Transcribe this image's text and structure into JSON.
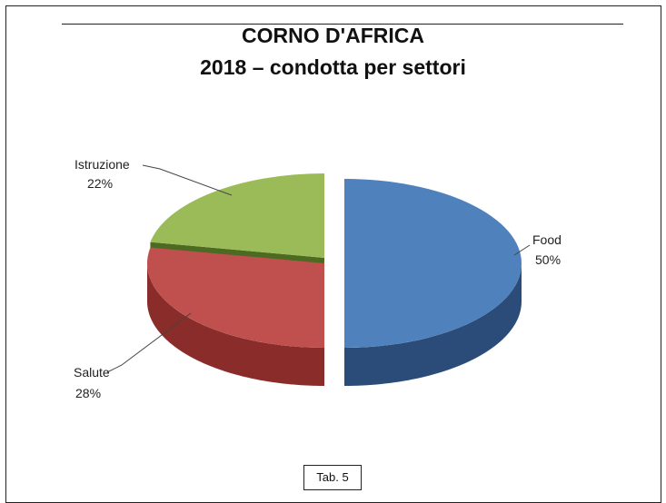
{
  "chart_data": {
    "type": "pie",
    "style": "3d-exploded",
    "title": "CORNO D'AFRICA",
    "subtitle": "2018 – condotta per settori",
    "legend": "none",
    "slices": [
      {
        "label": "Food",
        "value": 50,
        "value_label": "50%",
        "color": "#4f81bd",
        "side_color": "#2b4c78"
      },
      {
        "label": "Salute",
        "value": 28,
        "value_label": "28%",
        "color": "#c0504d",
        "side_color": "#8a2c2a"
      },
      {
        "label": "Istruzione",
        "value": 22,
        "value_label": "22%",
        "color": "#9bbb59",
        "side_color": "#4c6a22"
      }
    ]
  },
  "footer": {
    "table_label": "Tab. 5"
  }
}
